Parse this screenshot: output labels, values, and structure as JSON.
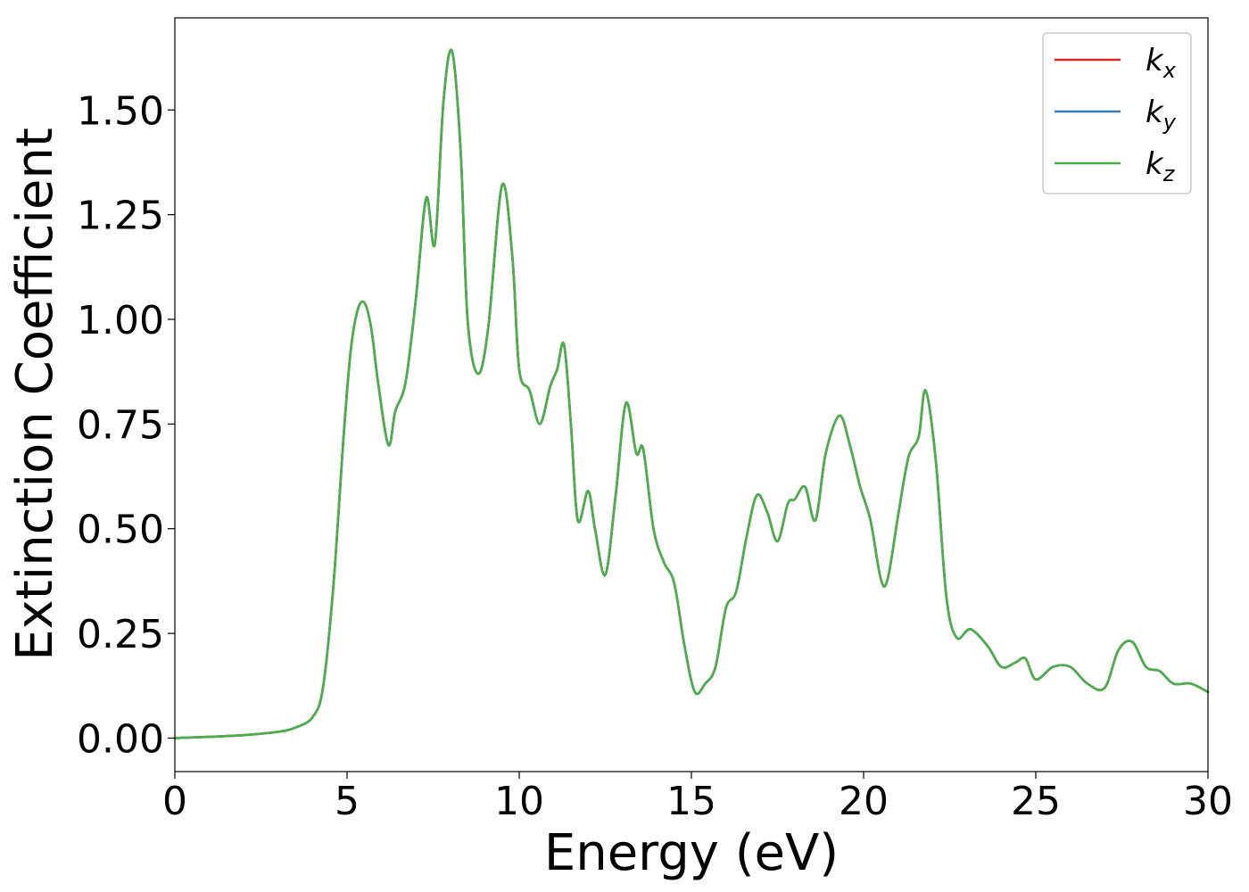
{
  "chart_data": {
    "type": "line",
    "xlabel": "Energy (eV)",
    "ylabel": "Extinction Coefficient",
    "xlim": [
      0,
      30
    ],
    "ylim": [
      -0.08,
      1.72
    ],
    "x_ticks": [
      0,
      5,
      10,
      15,
      20,
      25,
      30
    ],
    "x_tick_labels": [
      "0",
      "5",
      "10",
      "15",
      "20",
      "25",
      "30"
    ],
    "y_ticks": [
      0.0,
      0.25,
      0.5,
      0.75,
      1.0,
      1.25,
      1.5
    ],
    "y_tick_labels": [
      "0.00",
      "0.25",
      "0.50",
      "0.75",
      "1.00",
      "1.25",
      "1.50"
    ],
    "grid": false,
    "legend_position": "top-right",
    "series": [
      {
        "name": "k_x",
        "label_base": "k",
        "label_sub": "x",
        "color": "#d62728"
      },
      {
        "name": "k_y",
        "label_base": "k",
        "label_sub": "y",
        "color": "#377eb8"
      },
      {
        "name": "k_z",
        "label_base": "k",
        "label_sub": "z",
        "color": "#4daf4a"
      }
    ],
    "x": [
      0,
      1,
      2,
      3,
      3.5,
      4,
      4.3,
      4.6,
      4.9,
      5.1,
      5.3,
      5.5,
      5.7,
      5.9,
      6.2,
      6.4,
      6.7,
      7.0,
      7.3,
      7.55,
      7.8,
      8.05,
      8.3,
      8.5,
      8.8,
      9.1,
      9.5,
      9.8,
      10.0,
      10.3,
      10.6,
      10.9,
      11.1,
      11.3,
      11.5,
      11.7,
      12.0,
      12.2,
      12.5,
      12.8,
      13.1,
      13.4,
      13.6,
      13.9,
      14.2,
      14.5,
      14.8,
      15.1,
      15.4,
      15.7,
      16.0,
      16.3,
      16.6,
      16.9,
      17.2,
      17.5,
      17.8,
      18.0,
      18.3,
      18.6,
      18.9,
      19.3,
      19.6,
      19.9,
      20.2,
      20.5,
      20.7,
      21.0,
      21.3,
      21.6,
      21.8,
      22.1,
      22.4,
      22.7,
      23.1,
      23.6,
      24.0,
      24.4,
      24.7,
      25.0,
      25.5,
      26.0,
      26.5,
      27.0,
      27.4,
      27.8,
      28.2,
      28.6,
      29.0,
      29.5,
      30.0
    ],
    "values": [
      0.0,
      0.003,
      0.007,
      0.015,
      0.025,
      0.05,
      0.12,
      0.36,
      0.72,
      0.92,
      1.02,
      1.04,
      0.98,
      0.85,
      0.7,
      0.78,
      0.85,
      1.05,
      1.29,
      1.18,
      1.52,
      1.64,
      1.4,
      1.0,
      0.87,
      0.98,
      1.32,
      1.15,
      0.88,
      0.83,
      0.75,
      0.84,
      0.88,
      0.94,
      0.75,
      0.52,
      0.59,
      0.5,
      0.39,
      0.58,
      0.8,
      0.68,
      0.69,
      0.5,
      0.42,
      0.37,
      0.22,
      0.11,
      0.13,
      0.17,
      0.31,
      0.35,
      0.48,
      0.58,
      0.54,
      0.47,
      0.56,
      0.57,
      0.6,
      0.52,
      0.68,
      0.77,
      0.7,
      0.6,
      0.52,
      0.38,
      0.38,
      0.53,
      0.67,
      0.72,
      0.83,
      0.66,
      0.34,
      0.24,
      0.26,
      0.22,
      0.17,
      0.18,
      0.19,
      0.14,
      0.17,
      0.17,
      0.13,
      0.12,
      0.21,
      0.23,
      0.17,
      0.16,
      0.13,
      0.13,
      0.11
    ]
  }
}
